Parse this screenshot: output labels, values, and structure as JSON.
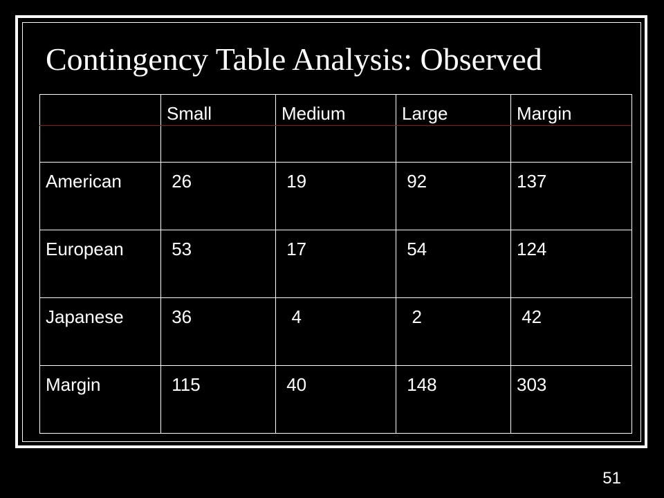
{
  "slide": {
    "title": "Contingency Table Analysis: Observed",
    "number": "51",
    "colors": {
      "background": "#000000",
      "text": "#ffffff",
      "header_rule": "#8b1a1a"
    }
  },
  "table": {
    "headers": [
      "",
      "Small",
      "Medium",
      "Large",
      "Margin"
    ],
    "rows": [
      [
        "American",
        " 26",
        " 19",
        " 92",
        "137"
      ],
      [
        "European",
        " 53",
        " 17",
        " 54",
        "124"
      ],
      [
        "Japanese",
        " 36",
        "  4",
        "  2",
        " 42"
      ],
      [
        "Margin",
        " 115",
        " 40",
        " 148",
        "303"
      ]
    ]
  }
}
